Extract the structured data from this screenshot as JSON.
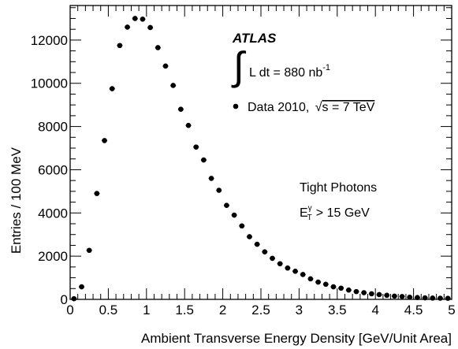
{
  "chart_data": {
    "type": "scatter",
    "xlabel": "Ambient Transverse Energy Density [GeV/Unit Area]",
    "ylabel": "Entries / 100 MeV",
    "xlim": [
      0,
      5
    ],
    "ylim": [
      0,
      13600
    ],
    "x_ticks": [
      "0",
      "0.5",
      "1",
      "1.5",
      "2",
      "2.5",
      "3",
      "3.5",
      "4",
      "4.5",
      "5"
    ],
    "y_ticks": [
      "0",
      "2000",
      "4000",
      "6000",
      "8000",
      "10000",
      "12000"
    ],
    "grid": false,
    "annotations": {
      "experiment": "ATLAS",
      "luminosity_integral": "∫",
      "luminosity_main": "L dt = 880 nb",
      "luminosity_sup": "-1",
      "data_label_prefix": "Data 2010,",
      "data_label_sqrt": "√",
      "data_label_energy": "s = 7 TeV",
      "selection": "Tight Photons",
      "cut_E": "E",
      "cut_sub": "T",
      "cut_sup": "γ",
      "cut_rest": "> 15 GeV"
    },
    "series": [
      {
        "x": [
          0.05,
          0.15,
          0.25,
          0.35,
          0.45,
          0.55,
          0.65,
          0.75,
          0.85,
          0.95,
          1.05,
          1.15,
          1.25,
          1.35,
          1.45,
          1.55,
          1.65,
          1.75,
          1.85,
          1.95,
          2.05,
          2.15,
          2.25,
          2.35,
          2.45,
          2.55,
          2.65,
          2.75,
          2.85,
          2.95,
          3.05,
          3.15,
          3.25,
          3.35,
          3.45,
          3.55,
          3.65,
          3.75,
          3.85,
          3.95,
          4.05,
          4.15,
          4.25,
          4.35,
          4.45,
          4.55,
          4.65,
          4.75,
          4.85,
          4.95
        ],
        "y": [
          30,
          580,
          2270,
          4900,
          7350,
          9750,
          11750,
          12600,
          13000,
          12970,
          12580,
          11650,
          10800,
          9900,
          8800,
          8050,
          7050,
          6450,
          5600,
          5050,
          4350,
          3900,
          3400,
          2900,
          2550,
          2200,
          1900,
          1650,
          1450,
          1300,
          1150,
          950,
          800,
          700,
          580,
          520,
          430,
          360,
          310,
          260,
          220,
          190,
          150,
          130,
          100,
          85,
          70,
          60,
          55,
          50
        ]
      }
    ]
  }
}
